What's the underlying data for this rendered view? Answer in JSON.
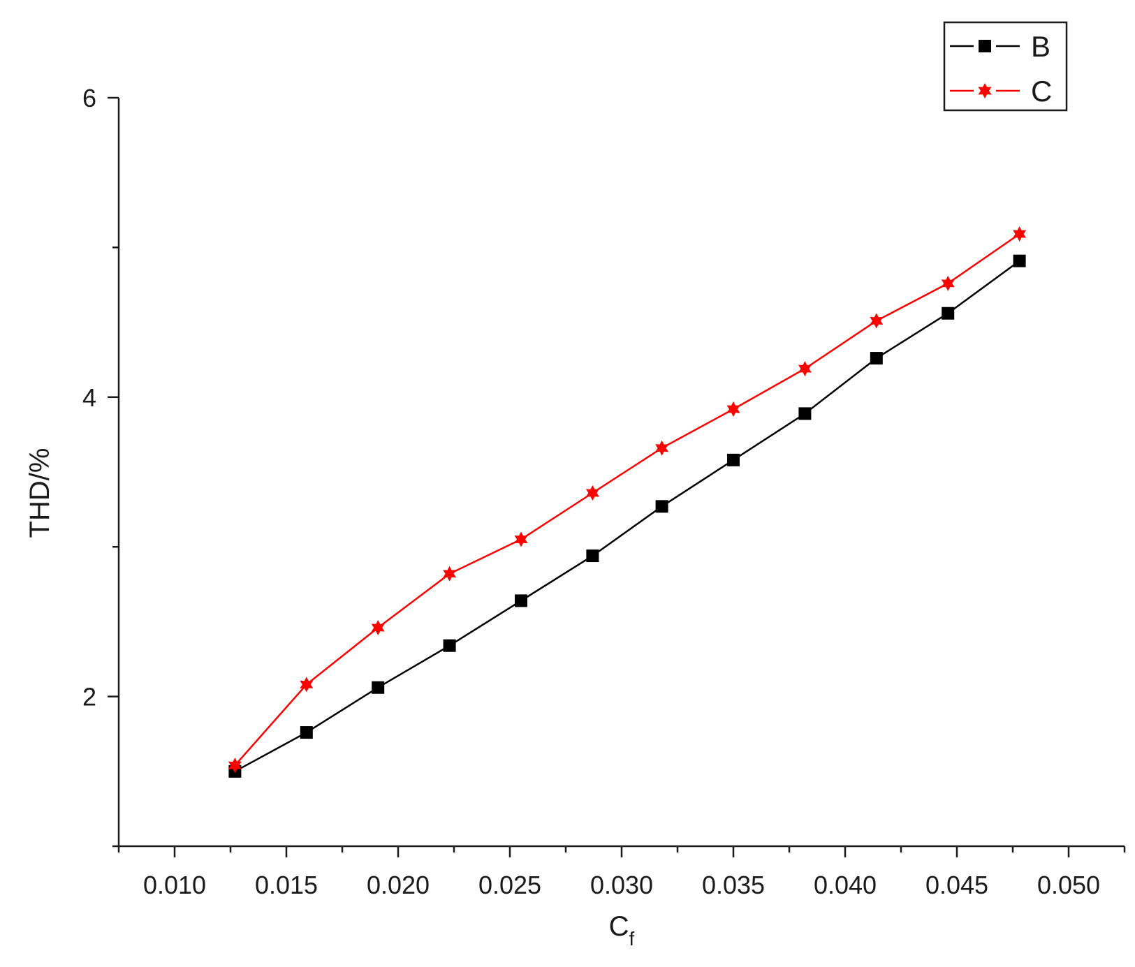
{
  "chart_data": {
    "type": "line",
    "title": "",
    "xlabel": "C",
    "xlabel_subscript": "f",
    "ylabel": "THD/%",
    "xlim": [
      0.0075,
      0.0525
    ],
    "ylim": [
      1.0,
      6.0
    ],
    "x_ticks": [
      "0.010",
      "0.015",
      "0.020",
      "0.025",
      "0.030",
      "0.035",
      "0.040",
      "0.045",
      "0.050"
    ],
    "x_tick_values": [
      0.01,
      0.015,
      0.02,
      0.025,
      0.03,
      0.035,
      0.04,
      0.045,
      0.05
    ],
    "y_ticks": [
      "2",
      "4",
      "6"
    ],
    "y_tick_values": [
      2,
      4,
      6
    ],
    "grid": false,
    "legend_position": "top-right",
    "x": [
      0.0127,
      0.0159,
      0.0191,
      0.0223,
      0.0255,
      0.0287,
      0.0318,
      0.035,
      0.0382,
      0.0414,
      0.0446,
      0.0478
    ],
    "series": [
      {
        "name": "B",
        "color": "#000000",
        "marker": "square",
        "values": [
          1.5,
          1.76,
          2.06,
          2.34,
          2.64,
          2.94,
          3.27,
          3.58,
          3.89,
          4.26,
          4.56,
          4.91
        ]
      },
      {
        "name": "C",
        "color": "#ff0000",
        "marker": "star",
        "values": [
          1.54,
          2.08,
          2.46,
          2.82,
          3.05,
          3.36,
          3.66,
          3.92,
          4.19,
          4.51,
          4.76,
          5.09
        ]
      }
    ]
  }
}
